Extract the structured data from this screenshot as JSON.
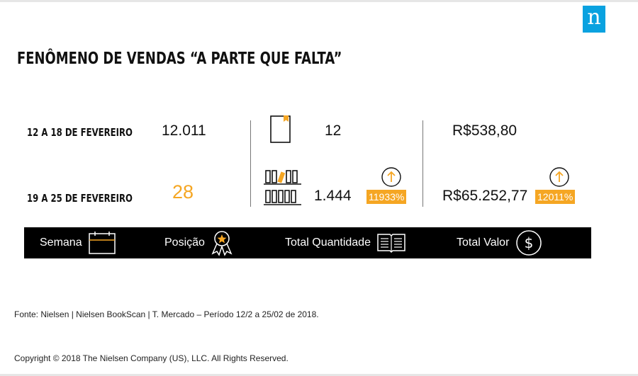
{
  "brand": {
    "logo_letter": "n",
    "color": "#0aa2e0"
  },
  "title": "FENÔMENO DE VENDAS “A PARTE QUE FALTA”",
  "accent_color": "#f5a623",
  "rows": [
    {
      "period": "12 A 18 DE FEVEREIRO",
      "position": "12.011",
      "quantity": "12",
      "value": "R$538,80"
    },
    {
      "period": "19 A 25 DE FEVEREIRO",
      "position": "28",
      "quantity": "1.444",
      "quantity_growth": "11933%",
      "value": "R$65.252,77",
      "value_growth": "12011%"
    }
  ],
  "legend": {
    "week": "Semana",
    "position": "Posição",
    "total_quantity": "Total Quantidade",
    "total_value": "Total Valor",
    "icons": [
      "calendar-icon",
      "award-ribbon-icon",
      "open-book-icon",
      "dollar-coin-icon"
    ]
  },
  "footer": {
    "source": "Fonte: Nielsen | Nielsen BookScan | T. Mercado – Período 12/2 a 25/02 de 2018.",
    "copyright": "Copyright © 2018 The Nielsen Company (US), LLC. All Rights Reserved."
  }
}
